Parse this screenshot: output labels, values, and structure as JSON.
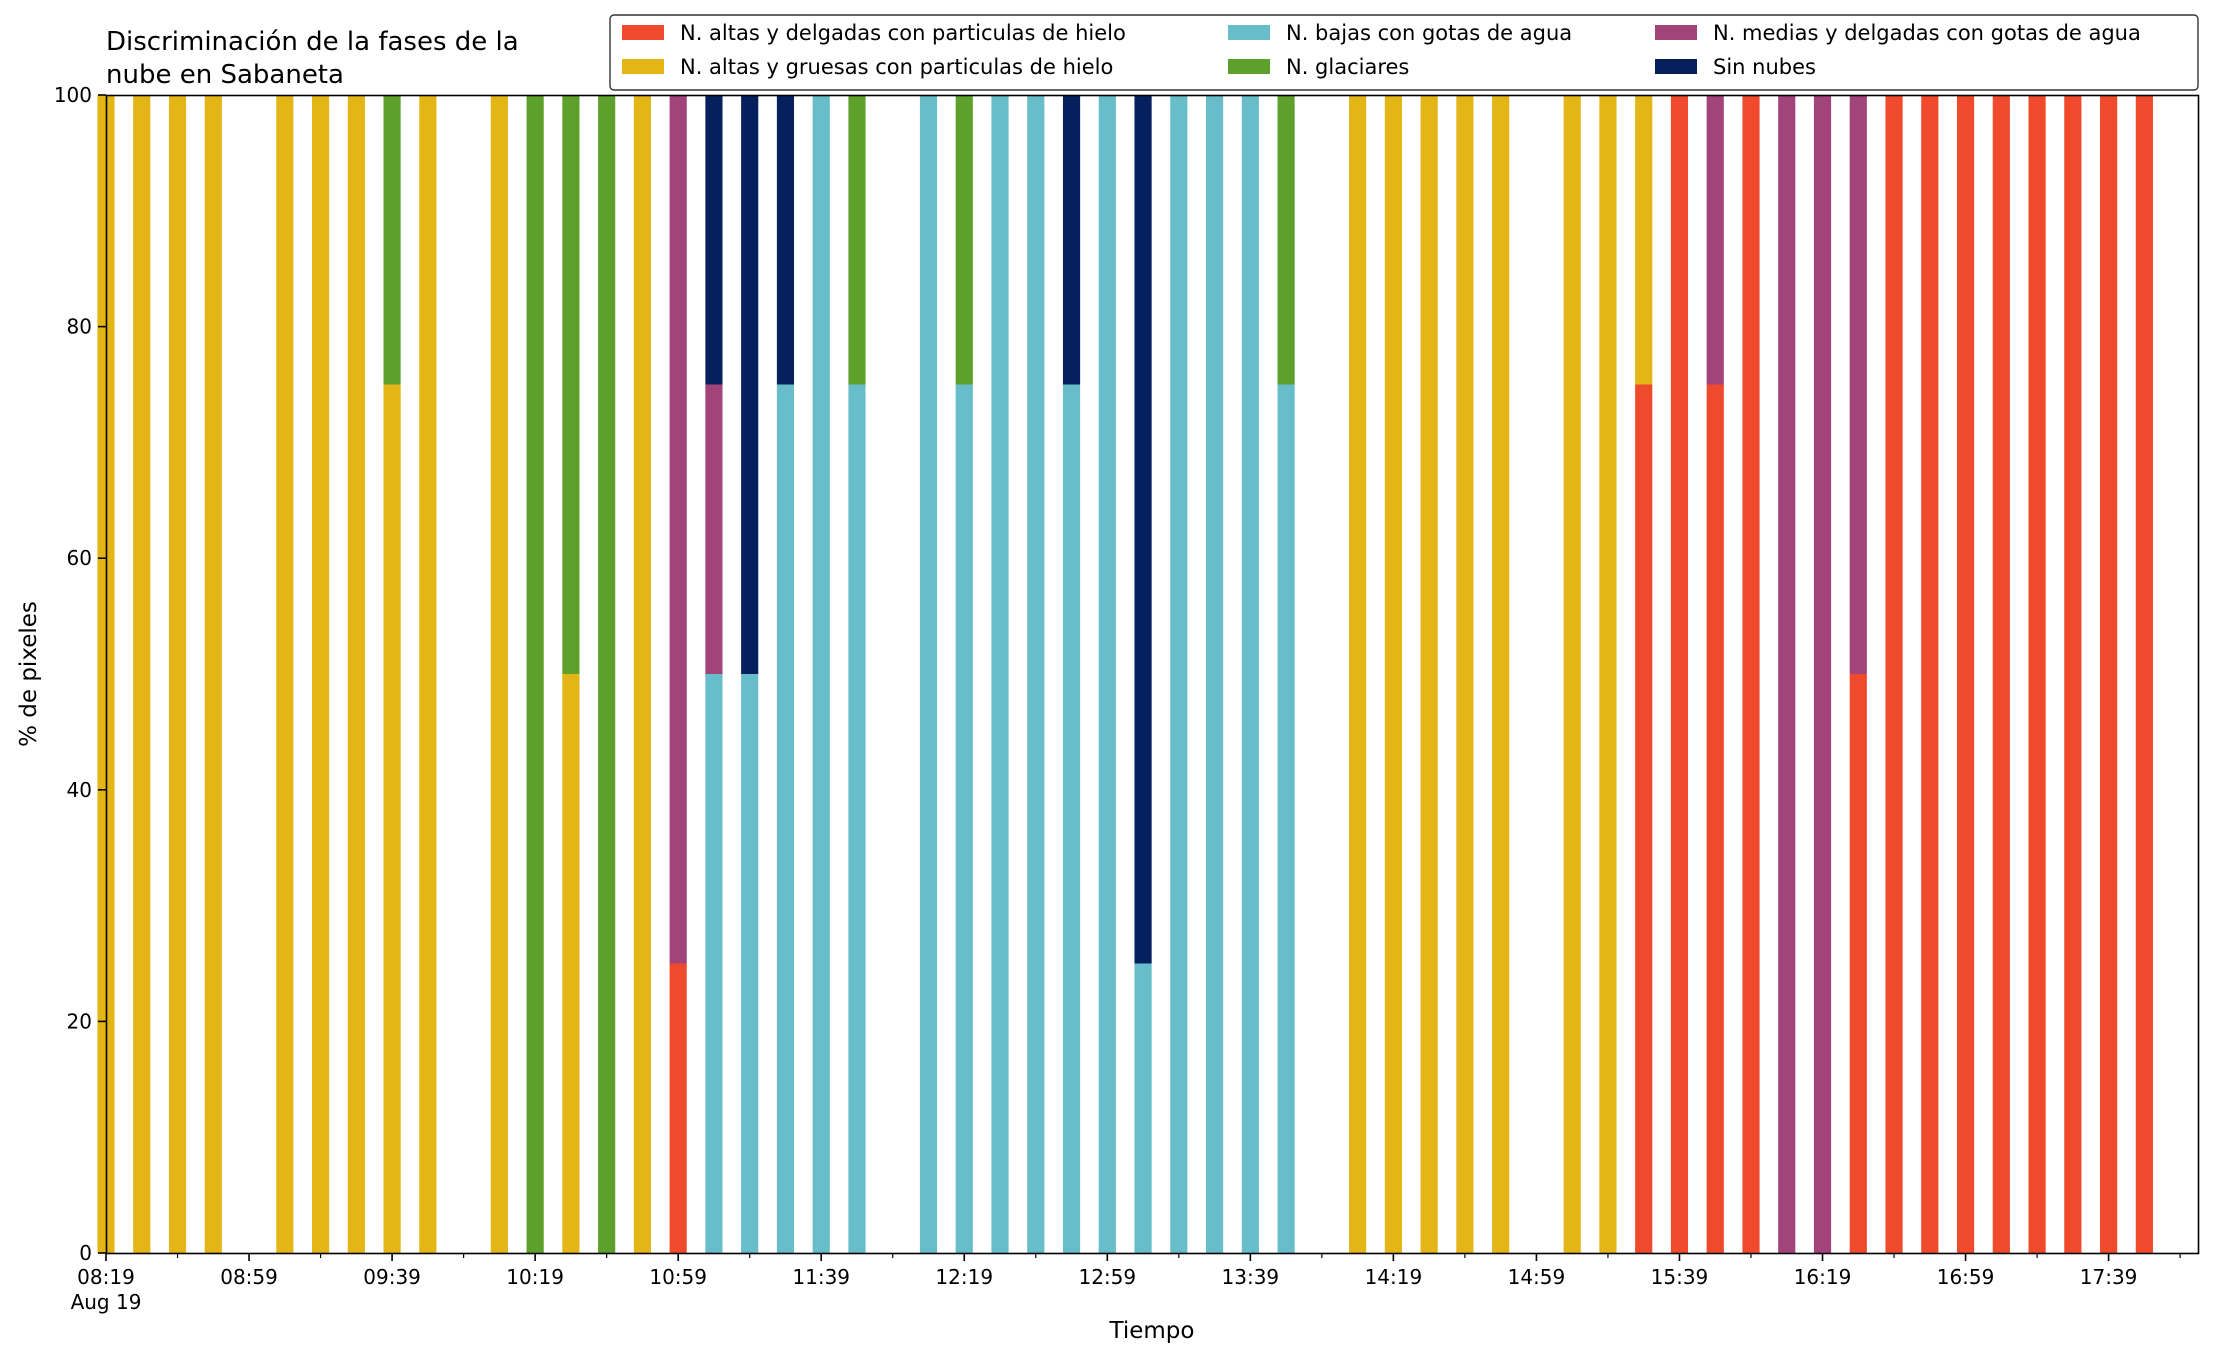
{
  "chart_data": {
    "type": "bar",
    "stacked": true,
    "title": "Discriminación de la fases de la nube en Sabaneta",
    "title_lines": [
      "Discriminación de la fases de la",
      "nube en Sabaneta"
    ],
    "xlabel": "Tiempo",
    "ylabel": "% de pixeles",
    "ylim": [
      0,
      100
    ],
    "yticks": [
      0,
      20,
      40,
      60,
      80,
      100
    ],
    "x_start": "08:19",
    "x_step_minutes": 10,
    "x_range_minutes": [
      0,
      585
    ],
    "xtick_labels": [
      "08:19",
      "08:59",
      "09:39",
      "10:19",
      "10:59",
      "11:39",
      "12:19",
      "12:59",
      "13:39",
      "14:19",
      "14:59",
      "15:39",
      "16:19",
      "16:59",
      "17:39"
    ],
    "xtick_date_label": "Aug 19",
    "grid": false,
    "legend": "top-right",
    "series": [
      {
        "name": "N. altas y delgadas con particulas de hielo",
        "color": "#ee4a2b"
      },
      {
        "name": "N. altas y gruesas con particulas de hielo",
        "color": "#e3b517"
      },
      {
        "name": "N. bajas con gotas de agua",
        "color": "#67bdc9"
      },
      {
        "name": "N. glaciares",
        "color": "#5ea02c"
      },
      {
        "name": "N. medias y delgadas con gotas de agua",
        "color": "#a2447a"
      },
      {
        "name": "Sin nubes",
        "color": "#06205e"
      }
    ],
    "bars": [
      {
        "time": "08:19",
        "values": [
          0,
          100,
          0,
          0,
          0,
          0
        ]
      },
      {
        "time": "08:29",
        "values": [
          0,
          100,
          0,
          0,
          0,
          0
        ]
      },
      {
        "time": "08:39",
        "values": [
          0,
          100,
          0,
          0,
          0,
          0
        ]
      },
      {
        "time": "08:49",
        "values": [
          0,
          100,
          0,
          0,
          0,
          0
        ]
      },
      {
        "time": "09:09",
        "values": [
          0,
          100,
          0,
          0,
          0,
          0
        ]
      },
      {
        "time": "09:19",
        "values": [
          0,
          100,
          0,
          0,
          0,
          0
        ]
      },
      {
        "time": "09:29",
        "values": [
          0,
          100,
          0,
          0,
          0,
          0
        ]
      },
      {
        "time": "09:39",
        "values": [
          0,
          75,
          0,
          25,
          0,
          0
        ]
      },
      {
        "time": "09:49",
        "values": [
          0,
          100,
          0,
          0,
          0,
          0
        ]
      },
      {
        "time": "10:09",
        "values": [
          0,
          100,
          0,
          0,
          0,
          0
        ]
      },
      {
        "time": "10:19",
        "values": [
          0,
          0,
          0,
          100,
          0,
          0
        ]
      },
      {
        "time": "10:29",
        "values": [
          0,
          50,
          0,
          50,
          0,
          0
        ]
      },
      {
        "time": "10:39",
        "values": [
          0,
          0,
          0,
          100,
          0,
          0
        ]
      },
      {
        "time": "10:49",
        "values": [
          0,
          100,
          0,
          0,
          0,
          0
        ]
      },
      {
        "time": "10:59",
        "values": [
          25,
          0,
          0,
          0,
          75,
          0
        ]
      },
      {
        "time": "11:09",
        "values": [
          0,
          0,
          50,
          0,
          25,
          25
        ]
      },
      {
        "time": "11:19",
        "values": [
          0,
          0,
          50,
          0,
          0,
          50
        ]
      },
      {
        "time": "11:29",
        "values": [
          0,
          0,
          75,
          0,
          0,
          25
        ]
      },
      {
        "time": "11:39",
        "values": [
          0,
          0,
          100,
          0,
          0,
          0
        ]
      },
      {
        "time": "11:49",
        "values": [
          0,
          0,
          75,
          25,
          0,
          0
        ]
      },
      {
        "time": "12:09",
        "values": [
          0,
          0,
          100,
          0,
          0,
          0
        ]
      },
      {
        "time": "12:19",
        "values": [
          0,
          0,
          75,
          25,
          0,
          0
        ]
      },
      {
        "time": "12:29",
        "values": [
          0,
          0,
          100,
          0,
          0,
          0
        ]
      },
      {
        "time": "12:39",
        "values": [
          0,
          0,
          100,
          0,
          0,
          0
        ]
      },
      {
        "time": "12:49",
        "values": [
          0,
          0,
          75,
          0,
          0,
          25
        ]
      },
      {
        "time": "12:59",
        "values": [
          0,
          0,
          100,
          0,
          0,
          0
        ]
      },
      {
        "time": "13:09",
        "values": [
          0,
          0,
          25,
          0,
          0,
          75
        ]
      },
      {
        "time": "13:19",
        "values": [
          0,
          0,
          100,
          0,
          0,
          0
        ]
      },
      {
        "time": "13:29",
        "values": [
          0,
          0,
          100,
          0,
          0,
          0
        ]
      },
      {
        "time": "13:39",
        "values": [
          0,
          0,
          100,
          0,
          0,
          0
        ]
      },
      {
        "time": "13:49",
        "values": [
          0,
          0,
          75,
          25,
          0,
          0
        ]
      },
      {
        "time": "14:09",
        "values": [
          0,
          100,
          0,
          0,
          0,
          0
        ]
      },
      {
        "time": "14:19",
        "values": [
          0,
          100,
          0,
          0,
          0,
          0
        ]
      },
      {
        "time": "14:29",
        "values": [
          0,
          100,
          0,
          0,
          0,
          0
        ]
      },
      {
        "time": "14:39",
        "values": [
          0,
          100,
          0,
          0,
          0,
          0
        ]
      },
      {
        "time": "14:49",
        "values": [
          0,
          100,
          0,
          0,
          0,
          0
        ]
      },
      {
        "time": "15:09",
        "values": [
          0,
          100,
          0,
          0,
          0,
          0
        ]
      },
      {
        "time": "15:19",
        "values": [
          0,
          100,
          0,
          0,
          0,
          0
        ]
      },
      {
        "time": "15:29",
        "values": [
          75,
          25,
          0,
          0,
          0,
          0
        ]
      },
      {
        "time": "15:39",
        "values": [
          100,
          0,
          0,
          0,
          0,
          0
        ]
      },
      {
        "time": "15:49",
        "values": [
          75,
          0,
          0,
          0,
          25,
          0
        ]
      },
      {
        "time": "15:59",
        "values": [
          100,
          0,
          0,
          0,
          0,
          0
        ]
      },
      {
        "time": "16:09",
        "values": [
          0,
          0,
          0,
          0,
          100,
          0
        ]
      },
      {
        "time": "16:19",
        "values": [
          0,
          0,
          0,
          0,
          100,
          0
        ]
      },
      {
        "time": "16:29",
        "values": [
          50,
          0,
          0,
          0,
          50,
          0
        ]
      },
      {
        "time": "16:39",
        "values": [
          100,
          0,
          0,
          0,
          0,
          0
        ]
      },
      {
        "time": "16:49",
        "values": [
          100,
          0,
          0,
          0,
          0,
          0
        ]
      },
      {
        "time": "16:59",
        "values": [
          100,
          0,
          0,
          0,
          0,
          0
        ]
      },
      {
        "time": "17:09",
        "values": [
          100,
          0,
          0,
          0,
          0,
          0
        ]
      },
      {
        "time": "17:19",
        "values": [
          100,
          0,
          0,
          0,
          0,
          0
        ]
      },
      {
        "time": "17:29",
        "values": [
          100,
          0,
          0,
          0,
          0,
          0
        ]
      },
      {
        "time": "17:39",
        "values": [
          100,
          0,
          0,
          0,
          0,
          0
        ]
      },
      {
        "time": "17:49",
        "values": [
          100,
          0,
          0,
          0,
          0,
          0
        ]
      }
    ]
  }
}
